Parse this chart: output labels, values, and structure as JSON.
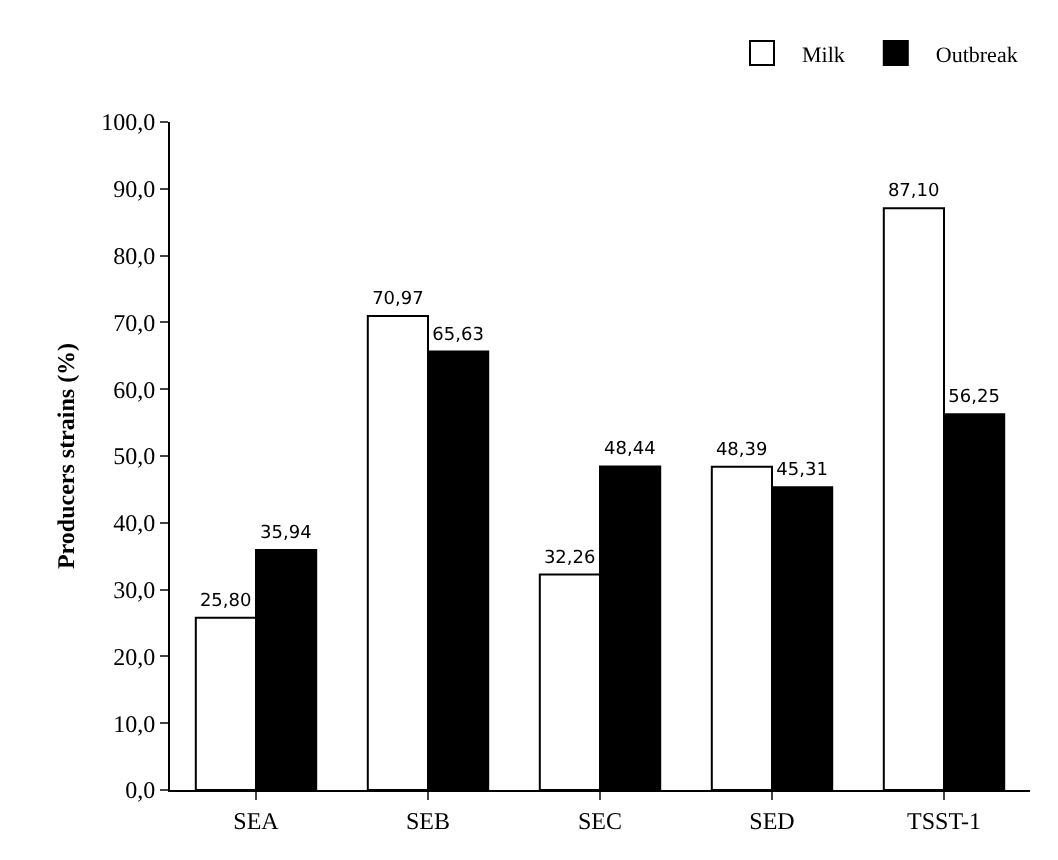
{
  "chart_data": {
    "type": "bar",
    "ylabel": "Producers strains (%)",
    "categories": [
      "SEA",
      "SEB",
      "SEC",
      "SED",
      "TSST-1"
    ],
    "series": [
      {
        "name": "Milk",
        "color": "#ffffff",
        "values": [
          25.8,
          70.97,
          32.26,
          48.39,
          87.1
        ],
        "value_labels": [
          "25,80",
          "70,97",
          "32,26",
          "48,39",
          "87,10"
        ]
      },
      {
        "name": "Outbreak",
        "color": "#000000",
        "values": [
          35.94,
          65.63,
          48.44,
          45.31,
          56.25
        ],
        "value_labels": [
          "35,94",
          "65,63",
          "48,44",
          "45,31",
          "56,25"
        ]
      }
    ],
    "ylim": [
      0,
      100
    ],
    "yticks": [
      {
        "value": 0,
        "label": "0,0"
      },
      {
        "value": 10,
        "label": "10,0"
      },
      {
        "value": 20,
        "label": "20,0"
      },
      {
        "value": 30,
        "label": "30,0"
      },
      {
        "value": 40,
        "label": "40,0"
      },
      {
        "value": 50,
        "label": "50,0"
      },
      {
        "value": 60,
        "label": "60,0"
      },
      {
        "value": 70,
        "label": "70,0"
      },
      {
        "value": 80,
        "label": "80,0"
      },
      {
        "value": 90,
        "label": "90,0"
      },
      {
        "value": 100,
        "label": "100,0"
      }
    ],
    "grid": false,
    "legend": "top right"
  }
}
